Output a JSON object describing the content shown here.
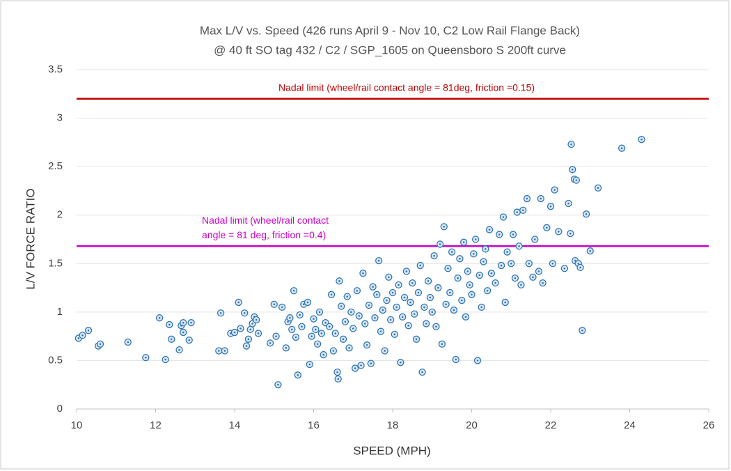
{
  "chart_data": {
    "type": "scatter",
    "title": [
      "Max L/V vs. Speed (426 runs April 9 - Nov 10, C2 Low Rail Flange Back)",
      "@ 40 ft SO tag 432 / C2 / SGP_1605 on Queensboro S 200ft curve"
    ],
    "x_label": "SPEED (MPH)",
    "y_label": "L/V FORCE RATIO",
    "xlim": [
      10,
      26
    ],
    "xticks": [
      10,
      12,
      14,
      16,
      18,
      20,
      22,
      24,
      26
    ],
    "ylim": [
      0,
      3.5
    ],
    "yticks": [
      0,
      0.5,
      1,
      1.5,
      2,
      2.5,
      3,
      3.5
    ],
    "grid": true,
    "reference_lines": [
      {
        "value": 3.2,
        "color": "#c00000",
        "label_lines": [
          "Nadal limit (wheel/rail contact angle = 81deg, friction =0.15)"
        ]
      },
      {
        "value": 1.68,
        "color": "#cc00cc",
        "label_lines": [
          "Nadal limit (wheel/rail contact",
          "angle = 81 deg, friction =0.4)"
        ]
      }
    ],
    "series": [
      {
        "color": "#2e75b6",
        "x": [
          10.05,
          10.15,
          10.3,
          10.55,
          10.6,
          11.3,
          11.75,
          12.1,
          12.25,
          12.35,
          12.4,
          12.6,
          12.65,
          12.7,
          12.7,
          12.85,
          12.9,
          13.6,
          13.65,
          13.75,
          13.9,
          14.0,
          14.1,
          14.15,
          14.25,
          14.3,
          14.35,
          14.4,
          14.45,
          14.5,
          14.55,
          14.6,
          14.9,
          15.0,
          15.05,
          15.1,
          15.2,
          15.3,
          15.35,
          15.4,
          15.45,
          15.5,
          15.55,
          15.6,
          15.65,
          15.7,
          15.75,
          15.85,
          15.9,
          15.95,
          16.0,
          16.05,
          16.1,
          16.15,
          16.2,
          16.25,
          16.3,
          16.4,
          16.45,
          16.5,
          16.55,
          16.6,
          16.62,
          16.65,
          16.7,
          16.75,
          16.8,
          16.85,
          16.9,
          16.95,
          17.0,
          17.05,
          17.1,
          17.15,
          17.2,
          17.25,
          17.3,
          17.35,
          17.4,
          17.45,
          17.5,
          17.55,
          17.6,
          17.65,
          17.7,
          17.75,
          17.8,
          17.85,
          17.9,
          17.95,
          18.0,
          18.05,
          18.1,
          18.15,
          18.2,
          18.25,
          18.3,
          18.35,
          18.4,
          18.45,
          18.5,
          18.55,
          18.6,
          18.65,
          18.7,
          18.75,
          18.8,
          18.85,
          18.9,
          18.95,
          19.0,
          19.05,
          19.1,
          19.15,
          19.2,
          19.25,
          19.3,
          19.35,
          19.4,
          19.45,
          19.5,
          19.55,
          19.6,
          19.65,
          19.7,
          19.75,
          19.8,
          19.85,
          19.9,
          19.95,
          20.0,
          20.05,
          20.1,
          20.15,
          20.2,
          20.25,
          20.3,
          20.35,
          20.4,
          20.45,
          20.5,
          20.6,
          20.7,
          20.75,
          20.8,
          20.85,
          20.9,
          21.0,
          21.05,
          21.1,
          21.15,
          21.2,
          21.25,
          21.3,
          21.4,
          21.45,
          21.55,
          21.6,
          21.7,
          21.75,
          21.8,
          21.9,
          22.0,
          22.05,
          22.1,
          22.2,
          22.35,
          22.45,
          22.5,
          22.52,
          22.55,
          22.6,
          22.62,
          22.65,
          22.7,
          22.75,
          22.8,
          22.9,
          23.0,
          23.2,
          23.8,
          24.3
        ],
        "values": [
          0.73,
          0.76,
          0.81,
          0.65,
          0.67,
          0.69,
          0.53,
          0.94,
          0.51,
          0.87,
          0.72,
          0.61,
          0.86,
          0.89,
          0.79,
          0.71,
          0.89,
          0.6,
          0.99,
          0.6,
          0.78,
          0.79,
          1.1,
          0.83,
          0.99,
          0.65,
          0.72,
          0.82,
          0.88,
          0.95,
          0.92,
          0.78,
          0.68,
          1.08,
          0.75,
          0.25,
          1.05,
          0.63,
          0.9,
          0.94,
          0.82,
          1.22,
          0.74,
          0.35,
          0.97,
          0.85,
          1.08,
          1.1,
          0.46,
          0.75,
          0.93,
          0.82,
          0.67,
          1.0,
          0.78,
          0.56,
          0.89,
          0.85,
          1.18,
          0.6,
          0.78,
          0.38,
          0.31,
          1.32,
          1.06,
          0.72,
          0.9,
          1.16,
          0.63,
          1.0,
          0.83,
          0.42,
          1.22,
          0.96,
          0.45,
          1.4,
          0.88,
          0.66,
          1.07,
          0.47,
          1.26,
          0.94,
          1.18,
          1.53,
          0.8,
          1.02,
          0.6,
          1.12,
          1.36,
          0.92,
          1.2,
          0.77,
          1.05,
          1.28,
          0.48,
          0.95,
          1.15,
          1.42,
          0.86,
          1.1,
          1.3,
          0.98,
          0.72,
          1.2,
          1.48,
          0.38,
          1.05,
          0.88,
          1.32,
          1.15,
          1.0,
          1.58,
          0.85,
          1.25,
          1.7,
          0.67,
          1.88,
          1.08,
          1.45,
          1.2,
          1.62,
          1.02,
          0.51,
          1.35,
          1.55,
          1.12,
          1.72,
          0.95,
          1.42,
          1.28,
          1.18,
          1.6,
          1.75,
          0.5,
          1.38,
          1.05,
          1.52,
          1.65,
          1.22,
          1.85,
          1.4,
          1.3,
          1.8,
          1.48,
          1.98,
          1.1,
          1.62,
          1.5,
          1.8,
          1.35,
          2.03,
          1.68,
          1.28,
          2.05,
          2.17,
          1.5,
          1.36,
          1.75,
          1.42,
          2.17,
          1.3,
          1.87,
          2.09,
          1.5,
          2.26,
          1.83,
          1.45,
          2.12,
          1.81,
          2.73,
          2.47,
          2.37,
          1.53,
          2.36,
          1.5,
          1.46,
          0.81,
          2.01,
          1.63,
          2.28,
          2.69,
          2.78
        ]
      }
    ]
  }
}
